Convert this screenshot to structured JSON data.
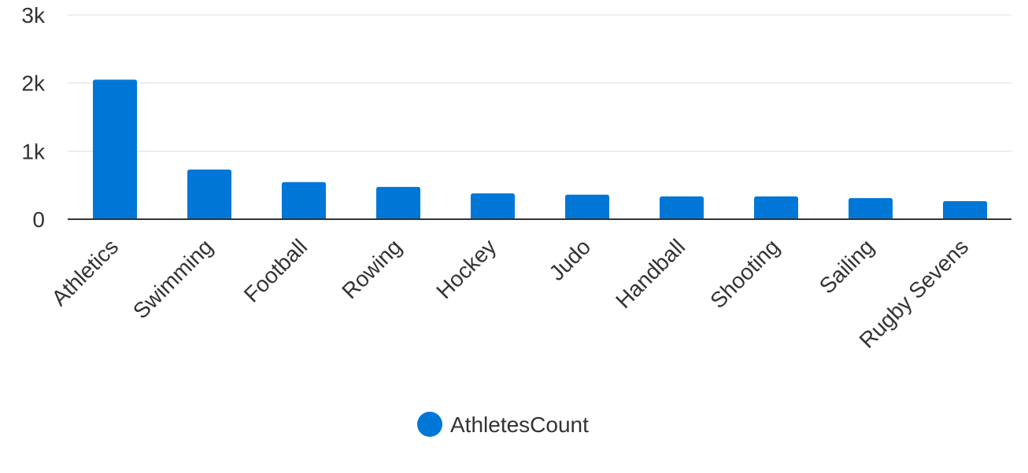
{
  "chart_data": {
    "type": "bar",
    "title": "",
    "xlabel": "",
    "ylabel": "",
    "categories": [
      "Athletics",
      "Swimming",
      "Football",
      "Rowing",
      "Hockey",
      "Judo",
      "Handball",
      "Shooting",
      "Sailing",
      "Rugby Sevens"
    ],
    "series": [
      {
        "name": "AthletesCount",
        "color": "#0077d6",
        "values": [
          2050,
          730,
          545,
          475,
          380,
          360,
          335,
          335,
          310,
          265
        ]
      }
    ],
    "ylim": [
      0,
      3000
    ],
    "yticks": [
      {
        "value": 0,
        "label": "0"
      },
      {
        "value": 1000,
        "label": "1k"
      },
      {
        "value": 2000,
        "label": "2k"
      },
      {
        "value": 3000,
        "label": "3k"
      }
    ],
    "grid": true,
    "legend_position": "bottom-center"
  }
}
